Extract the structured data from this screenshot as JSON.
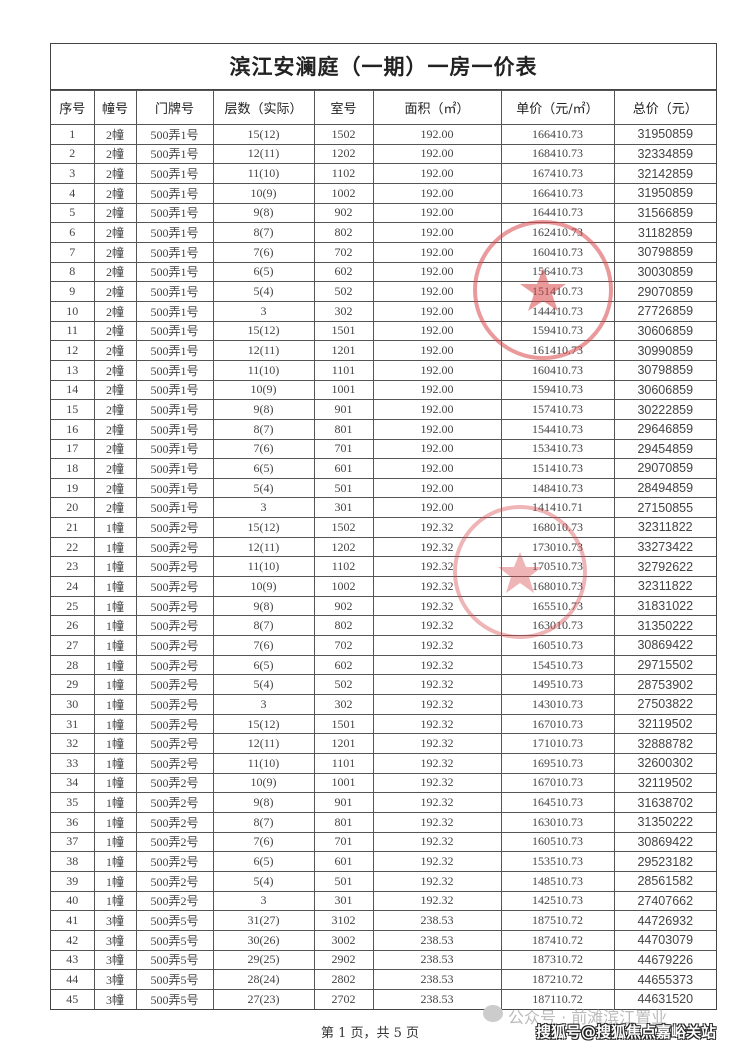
{
  "title": "滨江安澜庭（一期）一房一价表",
  "columns": [
    "序号",
    "幢号",
    "门牌号",
    "层数（实际）",
    "室号",
    "面积（㎡）",
    "单价（元/㎡）",
    "总价（元）"
  ],
  "rows": [
    [
      "1",
      "2幢",
      "500弄1号",
      "15(12)",
      "1502",
      "192.00",
      "166410.73",
      "31950859"
    ],
    [
      "2",
      "2幢",
      "500弄1号",
      "12(11)",
      "1202",
      "192.00",
      "168410.73",
      "32334859"
    ],
    [
      "3",
      "2幢",
      "500弄1号",
      "11(10)",
      "1102",
      "192.00",
      "167410.73",
      "32142859"
    ],
    [
      "4",
      "2幢",
      "500弄1号",
      "10(9)",
      "1002",
      "192.00",
      "166410.73",
      "31950859"
    ],
    [
      "5",
      "2幢",
      "500弄1号",
      "9(8)",
      "902",
      "192.00",
      "164410.73",
      "31566859"
    ],
    [
      "6",
      "2幢",
      "500弄1号",
      "8(7)",
      "802",
      "192.00",
      "162410.73",
      "31182859"
    ],
    [
      "7",
      "2幢",
      "500弄1号",
      "7(6)",
      "702",
      "192.00",
      "160410.73",
      "30798859"
    ],
    [
      "8",
      "2幢",
      "500弄1号",
      "6(5)",
      "602",
      "192.00",
      "156410.73",
      "30030859"
    ],
    [
      "9",
      "2幢",
      "500弄1号",
      "5(4)",
      "502",
      "192.00",
      "151410.73",
      "29070859"
    ],
    [
      "10",
      "2幢",
      "500弄1号",
      "3",
      "302",
      "192.00",
      "144410.73",
      "27726859"
    ],
    [
      "11",
      "2幢",
      "500弄1号",
      "15(12)",
      "1501",
      "192.00",
      "159410.73",
      "30606859"
    ],
    [
      "12",
      "2幢",
      "500弄1号",
      "12(11)",
      "1201",
      "192.00",
      "161410.73",
      "30990859"
    ],
    [
      "13",
      "2幢",
      "500弄1号",
      "11(10)",
      "1101",
      "192.00",
      "160410.73",
      "30798859"
    ],
    [
      "14",
      "2幢",
      "500弄1号",
      "10(9)",
      "1001",
      "192.00",
      "159410.73",
      "30606859"
    ],
    [
      "15",
      "2幢",
      "500弄1号",
      "9(8)",
      "901",
      "192.00",
      "157410.73",
      "30222859"
    ],
    [
      "16",
      "2幢",
      "500弄1号",
      "8(7)",
      "801",
      "192.00",
      "154410.73",
      "29646859"
    ],
    [
      "17",
      "2幢",
      "500弄1号",
      "7(6)",
      "701",
      "192.00",
      "153410.73",
      "29454859"
    ],
    [
      "18",
      "2幢",
      "500弄1号",
      "6(5)",
      "601",
      "192.00",
      "151410.73",
      "29070859"
    ],
    [
      "19",
      "2幢",
      "500弄1号",
      "5(4)",
      "501",
      "192.00",
      "148410.73",
      "28494859"
    ],
    [
      "20",
      "2幢",
      "500弄1号",
      "3",
      "301",
      "192.00",
      "141410.71",
      "27150855"
    ],
    [
      "21",
      "1幢",
      "500弄2号",
      "15(12)",
      "1502",
      "192.32",
      "168010.73",
      "32311822"
    ],
    [
      "22",
      "1幢",
      "500弄2号",
      "12(11)",
      "1202",
      "192.32",
      "173010.73",
      "33273422"
    ],
    [
      "23",
      "1幢",
      "500弄2号",
      "11(10)",
      "1102",
      "192.32",
      "170510.73",
      "32792622"
    ],
    [
      "24",
      "1幢",
      "500弄2号",
      "10(9)",
      "1002",
      "192.32",
      "168010.73",
      "32311822"
    ],
    [
      "25",
      "1幢",
      "500弄2号",
      "9(8)",
      "902",
      "192.32",
      "165510.73",
      "31831022"
    ],
    [
      "26",
      "1幢",
      "500弄2号",
      "8(7)",
      "802",
      "192.32",
      "163010.73",
      "31350222"
    ],
    [
      "27",
      "1幢",
      "500弄2号",
      "7(6)",
      "702",
      "192.32",
      "160510.73",
      "30869422"
    ],
    [
      "28",
      "1幢",
      "500弄2号",
      "6(5)",
      "602",
      "192.32",
      "154510.73",
      "29715502"
    ],
    [
      "29",
      "1幢",
      "500弄2号",
      "5(4)",
      "502",
      "192.32",
      "149510.73",
      "28753902"
    ],
    [
      "30",
      "1幢",
      "500弄2号",
      "3",
      "302",
      "192.32",
      "143010.73",
      "27503822"
    ],
    [
      "31",
      "1幢",
      "500弄2号",
      "15(12)",
      "1501",
      "192.32",
      "167010.73",
      "32119502"
    ],
    [
      "32",
      "1幢",
      "500弄2号",
      "12(11)",
      "1201",
      "192.32",
      "171010.73",
      "32888782"
    ],
    [
      "33",
      "1幢",
      "500弄2号",
      "11(10)",
      "1101",
      "192.32",
      "169510.73",
      "32600302"
    ],
    [
      "34",
      "1幢",
      "500弄2号",
      "10(9)",
      "1001",
      "192.32",
      "167010.73",
      "32119502"
    ],
    [
      "35",
      "1幢",
      "500弄2号",
      "9(8)",
      "901",
      "192.32",
      "164510.73",
      "31638702"
    ],
    [
      "36",
      "1幢",
      "500弄2号",
      "8(7)",
      "801",
      "192.32",
      "163010.73",
      "31350222"
    ],
    [
      "37",
      "1幢",
      "500弄2号",
      "7(6)",
      "701",
      "192.32",
      "160510.73",
      "30869422"
    ],
    [
      "38",
      "1幢",
      "500弄2号",
      "6(5)",
      "601",
      "192.32",
      "153510.73",
      "29523182"
    ],
    [
      "39",
      "1幢",
      "500弄2号",
      "5(4)",
      "501",
      "192.32",
      "148510.73",
      "28561582"
    ],
    [
      "40",
      "1幢",
      "500弄2号",
      "3",
      "301",
      "192.32",
      "142510.73",
      "27407662"
    ],
    [
      "41",
      "3幢",
      "500弄5号",
      "31(27)",
      "3102",
      "238.53",
      "187510.72",
      "44726932"
    ],
    [
      "42",
      "3幢",
      "500弄5号",
      "30(26)",
      "3002",
      "238.53",
      "187410.72",
      "44703079"
    ],
    [
      "43",
      "3幢",
      "500弄5号",
      "29(25)",
      "2902",
      "238.53",
      "187310.72",
      "44679226"
    ],
    [
      "44",
      "3幢",
      "500弄5号",
      "28(24)",
      "2802",
      "238.53",
      "187210.72",
      "44655373"
    ],
    [
      "45",
      "3幢",
      "500弄5号",
      "27(23)",
      "2702",
      "238.53",
      "187110.72",
      "44631520"
    ]
  ],
  "footer": "第 1 页，共 5 页",
  "watermarks": {
    "wechat": "公众号 · 前滩滨江置业",
    "sohu": "搜狐号@搜狐焦点嘉峪关站"
  },
  "stamp_color": "#d9464a"
}
